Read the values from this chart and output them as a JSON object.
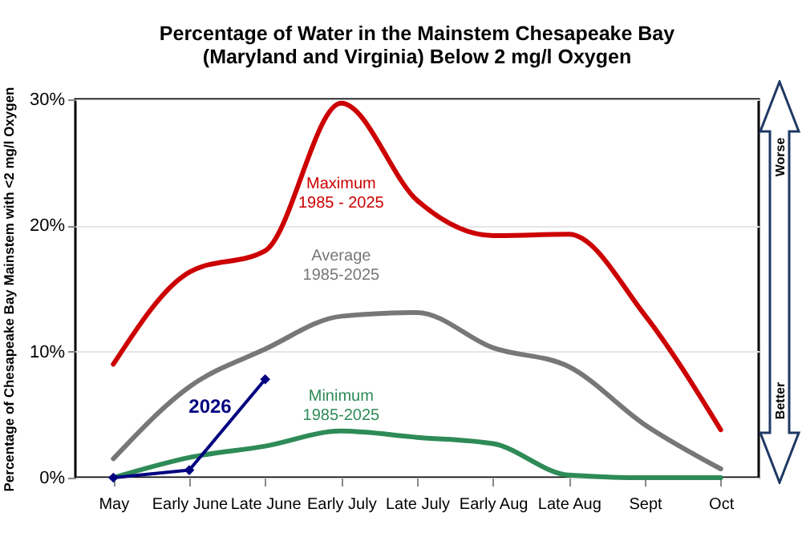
{
  "chart_data": {
    "type": "line",
    "title": "Percentage of Water in the Mainstem Chesapeake Bay\n(Maryland and Virginia) Below 2 mg/l Oxygen",
    "ylabel": "Percentage of Chesapeake Bay Mainstem with <2 mg/l Oxygen",
    "categories": [
      "May",
      "Early June",
      "Late June",
      "Early July",
      "Late July",
      "Early Aug",
      "Late Aug",
      "Sept",
      "Oct"
    ],
    "series": [
      {
        "name": "Maximum\n1985 - 2025",
        "color": "#cc0000",
        "marker": "none",
        "values": [
          9,
          16.3,
          18,
          29.7,
          22,
          19.2,
          19.3,
          12.9,
          3.8
        ]
      },
      {
        "name": "Average\n1985-2025",
        "color": "#777777",
        "marker": "none",
        "values": [
          1.5,
          7.2,
          10.2,
          12.8,
          13.1,
          10.3,
          8.8,
          4.2,
          0.7
        ]
      },
      {
        "name": "Minimum\n1985-2025",
        "color": "#2e8b57",
        "marker": "none",
        "values": [
          0,
          1.6,
          2.5,
          3.7,
          3.2,
          2.7,
          0.2,
          0,
          0
        ]
      },
      {
        "name": "2026",
        "color": "#000080",
        "marker": "diamond",
        "values": [
          0,
          0.6,
          7.8,
          null,
          null,
          null,
          null,
          null,
          null
        ]
      }
    ],
    "ylim": [
      0,
      30
    ],
    "yticks": [
      {
        "value": 0,
        "label": "0%"
      },
      {
        "value": 10,
        "label": "10%"
      },
      {
        "value": 20,
        "label": "20%"
      },
      {
        "value": 30,
        "label": "30%"
      }
    ],
    "grid": "y",
    "legend": false,
    "annotations": [
      "Worse",
      "Better"
    ]
  }
}
